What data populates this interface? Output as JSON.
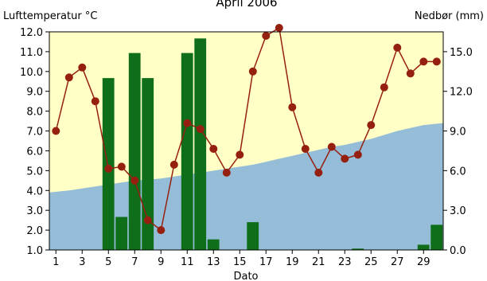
{
  "chart_data": {
    "type": "bar+line+area",
    "title": "April 2006",
    "left_axis_label": "Lufttemperatur °C",
    "right_axis_label": "Nedbør (mm)",
    "xlabel": "Dato",
    "x_ticks": [
      "1",
      "3",
      "5",
      "7",
      "9",
      "11",
      "13",
      "15",
      "17",
      "19",
      "21",
      "23",
      "25",
      "27",
      "29"
    ],
    "left_ylim": [
      1.0,
      12.0
    ],
    "left_ticks": [
      "1.0",
      "2.0",
      "3.0",
      "4.0",
      "5.0",
      "6.0",
      "7.0",
      "8.0",
      "9.0",
      "10.0",
      "11.0",
      "12.0"
    ],
    "right_ylim": [
      0.0,
      16.5
    ],
    "right_ticks": [
      "0.0",
      "3.0",
      "6.0",
      "9.0",
      "12.0",
      "15.0"
    ],
    "days": [
      1,
      2,
      3,
      4,
      5,
      6,
      7,
      8,
      9,
      10,
      11,
      12,
      13,
      14,
      15,
      16,
      17,
      18,
      19,
      20,
      21,
      22,
      23,
      24,
      25,
      26,
      27,
      28,
      29,
      30
    ],
    "temperature": [
      7.0,
      9.7,
      10.2,
      8.5,
      5.1,
      5.2,
      4.5,
      2.5,
      2.0,
      5.3,
      7.4,
      7.1,
      6.1,
      4.9,
      5.8,
      10.0,
      11.8,
      12.2,
      8.2,
      6.1,
      4.9,
      6.2,
      5.6,
      5.8,
      7.3,
      9.2,
      11.2,
      9.9,
      10.5,
      10.5
    ],
    "precipitation": [
      0,
      0,
      0,
      0,
      13.0,
      2.5,
      14.9,
      13.0,
      0,
      0,
      14.9,
      16.0,
      0.8,
      0,
      0,
      2.1,
      0,
      0,
      0,
      0,
      0,
      0,
      0,
      0.1,
      0,
      0,
      0,
      0,
      0.4,
      1.9
    ],
    "normal_temperature": [
      3.9,
      4.0,
      4.1,
      4.2,
      4.3,
      4.4,
      4.5,
      4.55,
      4.6,
      4.7,
      4.8,
      4.9,
      5.0,
      5.1,
      5.2,
      5.3,
      5.45,
      5.6,
      5.75,
      5.9,
      6.05,
      6.2,
      6.3,
      6.45,
      6.6,
      6.8,
      7.0,
      7.15,
      7.3,
      7.4
    ],
    "colors": {
      "plot_background": "#ffffc6",
      "normal_area": "#96bdd8",
      "precip_bars": "#0e6e1a",
      "temp_line": "#962010",
      "temp_points": "#962010"
    }
  }
}
